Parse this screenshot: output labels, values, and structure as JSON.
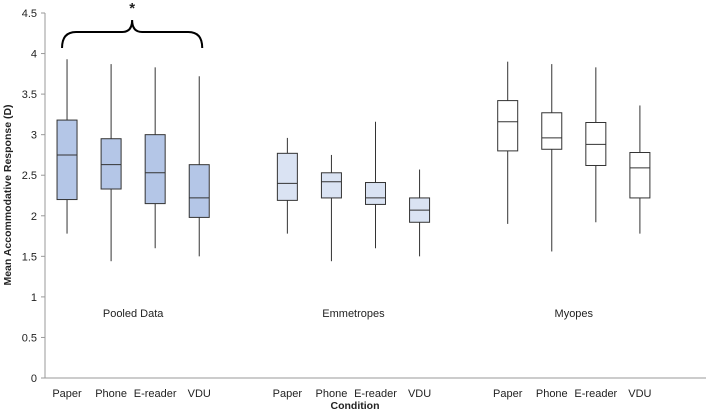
{
  "chart_data": {
    "type": "boxplot",
    "title": "",
    "xlabel": "Condition",
    "ylabel": "Mean Accommodative Response (D)",
    "ylim": [
      0,
      4.5
    ],
    "yticks": [
      "0",
      "0.5",
      "1",
      "1.5",
      "2",
      "2.5",
      "3",
      "3.5",
      "4",
      "4.5"
    ],
    "groups": [
      {
        "name": "Pooled Data",
        "fill": "#b4c6e7",
        "categories": [
          "Paper",
          "Phone",
          "E-reader",
          "VDU"
        ],
        "boxes": [
          {
            "min": 1.78,
            "q1": 2.2,
            "median": 2.75,
            "q3": 3.18,
            "max": 3.93
          },
          {
            "min": 1.44,
            "q1": 2.33,
            "median": 2.63,
            "q3": 2.95,
            "max": 3.87
          },
          {
            "min": 1.6,
            "q1": 2.15,
            "median": 2.53,
            "q3": 3.0,
            "max": 3.83
          },
          {
            "min": 1.5,
            "q1": 1.98,
            "median": 2.22,
            "q3": 2.63,
            "max": 3.72
          }
        ]
      },
      {
        "name": "Emmetropes",
        "fill": "#dae3f3",
        "categories": [
          "Paper",
          "Phone",
          "E-reader",
          "VDU"
        ],
        "boxes": [
          {
            "min": 1.78,
            "q1": 2.19,
            "median": 2.4,
            "q3": 2.77,
            "max": 2.96
          },
          {
            "min": 1.44,
            "q1": 2.22,
            "median": 2.42,
            "q3": 2.53,
            "max": 2.75
          },
          {
            "min": 1.6,
            "q1": 2.14,
            "median": 2.22,
            "q3": 2.41,
            "max": 3.16
          },
          {
            "min": 1.5,
            "q1": 1.92,
            "median": 2.07,
            "q3": 2.22,
            "max": 2.57
          }
        ]
      },
      {
        "name": "Myopes",
        "fill": "#ffffff",
        "categories": [
          "Paper",
          "Phone",
          "E-reader",
          "VDU"
        ],
        "boxes": [
          {
            "min": 1.9,
            "q1": 2.8,
            "median": 3.16,
            "q3": 3.42,
            "max": 3.9
          },
          {
            "min": 1.56,
            "q1": 2.82,
            "median": 2.96,
            "q3": 3.27,
            "max": 3.87
          },
          {
            "min": 1.92,
            "q1": 2.62,
            "median": 2.88,
            "q3": 3.15,
            "max": 3.83
          },
          {
            "min": 1.78,
            "q1": 2.22,
            "median": 2.59,
            "q3": 2.78,
            "max": 3.36
          }
        ]
      }
    ],
    "annotations": [
      {
        "text": "*",
        "type": "significance-bracket",
        "spans_group": "Pooled Data"
      }
    ],
    "colors": {
      "stroke": "#333333",
      "axis": "#999999",
      "text": "#222222"
    }
  }
}
